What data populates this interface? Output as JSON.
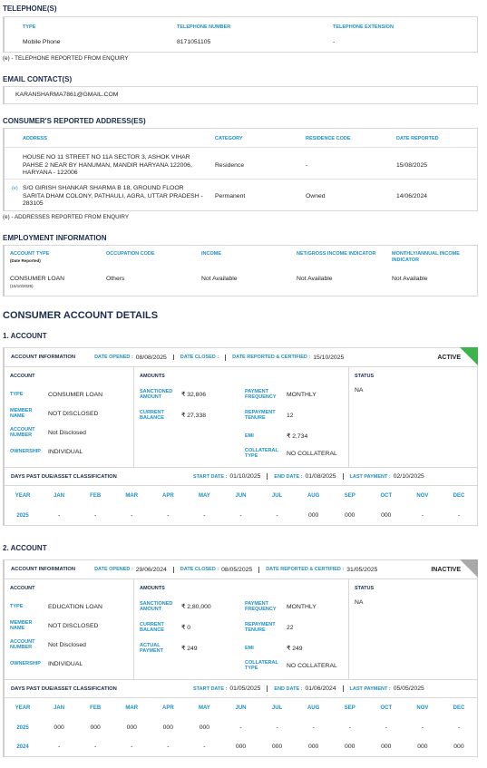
{
  "telephones": {
    "title": "TELEPHONE(S)",
    "headers": [
      "TYPE",
      "TELEPHONE NUMBER",
      "TELEPHONE EXTENSION"
    ],
    "rows": [
      [
        "Mobile Phone",
        "8171051105",
        "-"
      ]
    ],
    "note": "(e) - TELEPHONE REPORTED FROM ENQUIRY"
  },
  "emails": {
    "title": "EMAIL CONTACT(S)",
    "items": [
      "KARANSHARMA7861@GMAIL.COM"
    ]
  },
  "addresses": {
    "title": "CONSUMER'S REPORTED ADDRESS(ES)",
    "headers": [
      "ADDRESS",
      "CATEGORY",
      "RESIDENCE CODE",
      "DATE REPORTED"
    ],
    "rows": [
      {
        "address": "HOUSE NO 11 STREET NO 11A SECTOR 3, ASHOK VIHAR PAHSE 2 NEAR BY HANUMAN, MANDIR HARYANA 122006, HARYANA - 122006",
        "category": "Residence",
        "residence_code": "-",
        "date_reported": "15/08/2025"
      },
      {
        "marker": "(e)",
        "address": "S/O GIRISH SHANKAR SHARMA B 18, GROUND FLOOR SARITA DHAM COLONY, PATHAULI, AGRA, UTTAR PRADESH - 283105",
        "category": "Permanent",
        "residence_code": "Owned",
        "date_reported": "14/06/2024"
      }
    ],
    "note": "(e) - ADDRESSES REPORTED FROM ENQUIRY"
  },
  "employment": {
    "title": "EMPLOYMENT INFORMATION",
    "headers": [
      "ACCOUNT TYPE",
      "OCCUPATION CODE",
      "INCOME",
      "NET/GROSS INCOME INDICATOR",
      "MONTHLY/ANNUAL INCOME INDICATOR"
    ],
    "header_note": "(Date Reported)",
    "rows": [
      {
        "cells": [
          "CONSUMER LOAN",
          "Others",
          "Not Available",
          "Not Available",
          "Not Available"
        ],
        "date": "(15/10/2025)"
      }
    ]
  },
  "accounts": {
    "title": "CONSUMER ACCOUNT DETAILS",
    "items": [
      {
        "heading": "1. ACCOUNT",
        "info": {
          "title": "ACCOUNT INFORMATION",
          "fields": [
            {
              "label": "DATE OPENED :",
              "value": "08/08/2025"
            },
            {
              "label": "DATE CLOSED :"
            },
            {
              "label": "DATE REPORTED & CERTIFIED :",
              "value": "15/10/2025"
            }
          ],
          "status": "ACTIVE"
        },
        "account": {
          "title": "ACCOUNT",
          "fields": [
            {
              "label": "TYPE",
              "value": "CONSUMER LOAN"
            },
            {
              "label": "MEMBER NAME",
              "value": "NOT DISCLOSED"
            },
            {
              "label": "ACCOUNT NUMBER",
              "value": "Not Disclosed"
            },
            {
              "label": "OWNERSHIP",
              "value": "INDIVIDUAL"
            }
          ]
        },
        "amounts": {
          "title": "AMOUNTS",
          "left": [
            {
              "label": "SANCTIONED AMOUNT",
              "value": "₹ 32,806"
            },
            {
              "label": "CURRENT BALANCE",
              "value": "₹ 27,338"
            }
          ],
          "right": [
            {
              "label": "PAYMENT FREQUENCY",
              "value": "MONTHLY"
            },
            {
              "label": "REPAYMENT TENURE",
              "value": "12"
            },
            {
              "label": "EMI",
              "value": "₹ 2,734"
            },
            {
              "label": "COLLATERAL TYPE",
              "value": "NO COLLATERAL"
            }
          ]
        },
        "status": {
          "title": "STATUS",
          "value": "NA"
        },
        "dpd": {
          "title": "DAYS PAST DUE/ASSET CLASSIFICATION",
          "fields": [
            {
              "label": "START DATE :",
              "value": "01/10/2025"
            },
            {
              "label": "END DATE :",
              "value": "01/08/2025"
            },
            {
              "label": "LAST PAYMENT :",
              "value": "02/10/2025"
            }
          ],
          "headers": [
            "YEAR",
            "JAN",
            "FEB",
            "MAR",
            "APR",
            "MAY",
            "JUN",
            "JUL",
            "AUG",
            "SEP",
            "OCT",
            "NOV",
            "DEC"
          ],
          "rows": [
            {
              "year": "2025",
              "months": [
                "-",
                "-",
                "-",
                "-",
                "-",
                "-",
                "-",
                "000",
                "000",
                "000",
                "-",
                "-"
              ]
            }
          ]
        }
      },
      {
        "heading": "2. ACCOUNT",
        "info": {
          "title": "ACCOUNT INFORMATION",
          "fields": [
            {
              "label": "DATE OPENED :",
              "value": "29/06/2024"
            },
            {
              "label": "DATE CLOSED :",
              "value": "08/05/2025"
            },
            {
              "label": "DATE REPORTED & CERTIFIED :",
              "value": "31/05/2025"
            }
          ],
          "status": "INACTIVE"
        },
        "account": {
          "title": "ACCOUNT",
          "fields": [
            {
              "label": "TYPE",
              "value": "EDUCATION LOAN"
            },
            {
              "label": "MEMBER NAME",
              "value": "NOT DISCLOSED"
            },
            {
              "label": "ACCOUNT NUMBER",
              "value": "Not Disclosed"
            },
            {
              "label": "OWNERSHIP",
              "value": "INDIVIDUAL"
            }
          ]
        },
        "amounts": {
          "title": "AMOUNTS",
          "left": [
            {
              "label": "SANCTIONED AMOUNT",
              "value": "₹ 2,80,000"
            },
            {
              "label": "CURRENT BALANCE",
              "value": "₹ 0"
            },
            {
              "label": "ACTUAL PAYMENT",
              "value": "₹ 249"
            }
          ],
          "right": [
            {
              "label": "PAYMENT FREQUENCY",
              "value": "MONTHLY"
            },
            {
              "label": "REPAYMENT TENURE",
              "value": "22"
            },
            {
              "label": "EMI",
              "value": "₹ 249"
            },
            {
              "label": "COLLATERAL TYPE",
              "value": "NO COLLATERAL"
            }
          ]
        },
        "status": {
          "title": "STATUS",
          "value": "NA"
        },
        "dpd": {
          "title": "DAYS PAST DUE/ASSET CLASSIFICATION",
          "fields": [
            {
              "label": "START DATE :",
              "value": "01/05/2025"
            },
            {
              "label": "END DATE :",
              "value": "01/06/2024"
            },
            {
              "label": "LAST PAYMENT :",
              "value": "05/05/2025"
            }
          ],
          "headers": [
            "YEAR",
            "JAN",
            "FEB",
            "MAR",
            "APR",
            "MAY",
            "JUN",
            "JUL",
            "AUG",
            "SEP",
            "OCT",
            "NOV",
            "DEC"
          ],
          "rows": [
            {
              "year": "2025",
              "months": [
                "000",
                "000",
                "000",
                "000",
                "000",
                "-",
                "-",
                "-",
                "-",
                "-",
                "-",
                "-"
              ]
            },
            {
              "year": "2024",
              "months": [
                "-",
                "-",
                "-",
                "-",
                "-",
                "000",
                "000",
                "000",
                "000",
                "000",
                "000",
                "000"
              ]
            }
          ]
        }
      }
    ]
  }
}
